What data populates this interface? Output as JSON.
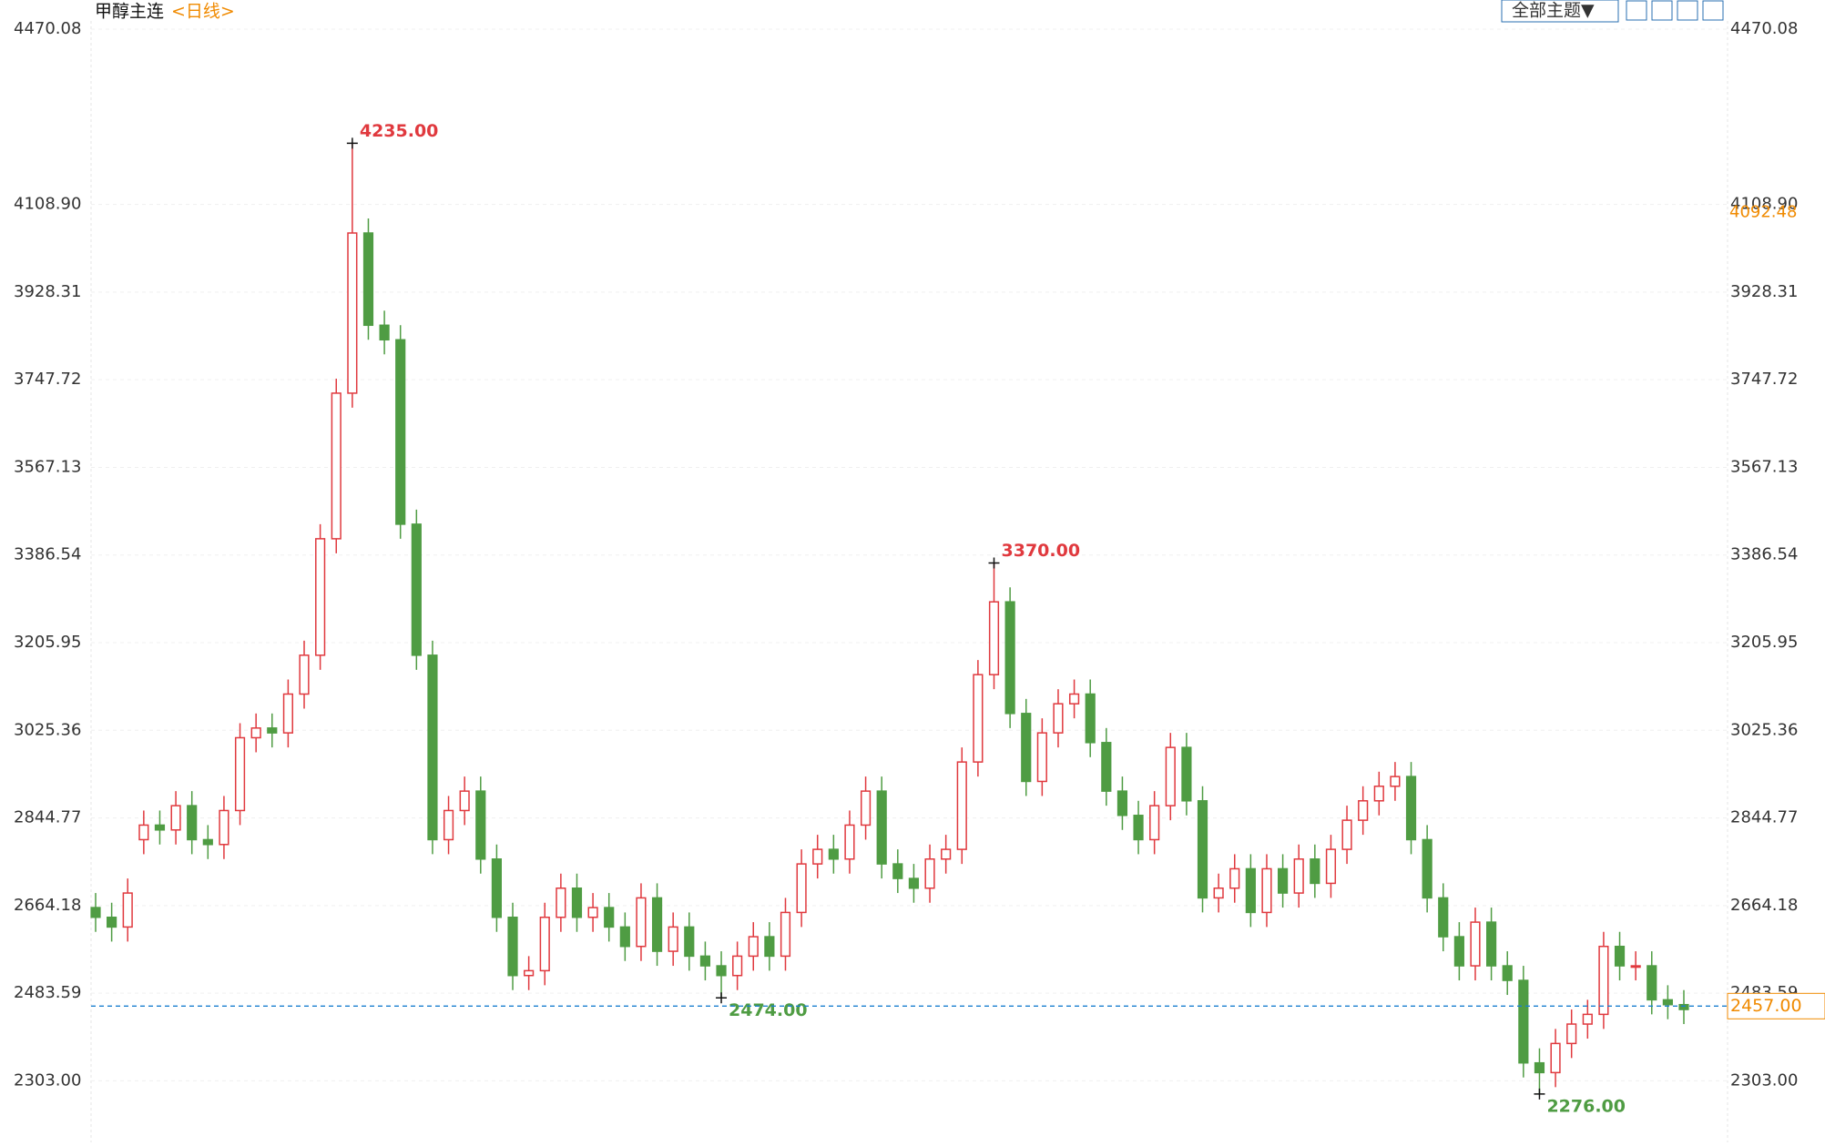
{
  "chart_data": {
    "type": "candlestick",
    "title": "甲醇主连",
    "subtitle": "<日线>",
    "theme_button": "全部主题▼",
    "up_color": "#e0393e",
    "down_color": "#4f9c43",
    "ylim": [
      2180,
      4487
    ],
    "yticks": [
      {
        "value": 2303,
        "label": "2303.00"
      },
      2483.59,
      2664.18,
      2844.77,
      {
        "value": 3025.36,
        "label": "3025.36"
      },
      3205.95,
      3386.54,
      3567.13,
      3747.72,
      3928.31,
      {
        "value": 4108.9,
        "label": "4108.90"
      },
      4470.08
    ],
    "open": [
      2660,
      2640,
      2620,
      2800,
      2830,
      2820,
      2870,
      2800,
      2790,
      2860,
      3010,
      3030,
      3020,
      3100,
      3180,
      3420,
      3720,
      4050,
      3860,
      3830,
      3450,
      3180,
      2800,
      2860,
      2900,
      2760,
      2640,
      2520,
      2530,
      2640,
      2700,
      2640,
      2660,
      2620,
      2580,
      2680,
      2570,
      2620,
      2560,
      2540,
      2520,
      2560,
      2600,
      2560,
      2650,
      2750,
      2780,
      2760,
      2830,
      2900,
      2750,
      2720,
      2700,
      2760,
      2780,
      2960,
      3140,
      3290,
      3060,
      2920,
      3020,
      3080,
      3100,
      3000,
      2900,
      2850,
      2800,
      2870,
      2990,
      2880,
      2680,
      2700,
      2740,
      2650,
      2740,
      2690,
      2760,
      2710,
      2780,
      2840,
      2880,
      2910,
      2930,
      2800,
      2680,
      2600,
      2540,
      2630,
      2540,
      2510,
      2340,
      2320,
      2380,
      2420,
      2440,
      2580,
      2540,
      2540,
      2470,
      2460
    ],
    "high": [
      2690,
      2670,
      2720,
      2860,
      2860,
      2900,
      2900,
      2830,
      2890,
      3040,
      3060,
      3060,
      3130,
      3210,
      3450,
      3750,
      4235,
      4080,
      3890,
      3860,
      3480,
      3210,
      2890,
      2930,
      2930,
      2790,
      2670,
      2560,
      2670,
      2730,
      2730,
      2690,
      2690,
      2650,
      2710,
      2710,
      2650,
      2650,
      2590,
      2570,
      2590,
      2630,
      2630,
      2680,
      2780,
      2810,
      2810,
      2860,
      2930,
      2930,
      2780,
      2750,
      2790,
      2810,
      2990,
      3170,
      3370,
      3320,
      3090,
      3050,
      3110,
      3130,
      3130,
      3030,
      2930,
      2880,
      2900,
      3020,
      3020,
      2910,
      2730,
      2770,
      2770,
      2770,
      2770,
      2790,
      2790,
      2810,
      2870,
      2910,
      2940,
      2960,
      2960,
      2830,
      2710,
      2630,
      2660,
      2660,
      2570,
      2540,
      2370,
      2410,
      2450,
      2470,
      2610,
      2610,
      2570,
      2570,
      2500,
      2490
    ],
    "low": [
      2610,
      2590,
      2590,
      2770,
      2790,
      2790,
      2770,
      2760,
      2760,
      2830,
      2980,
      2990,
      2990,
      3070,
      3150,
      3390,
      3690,
      3830,
      3800,
      3420,
      3150,
      2770,
      2770,
      2830,
      2730,
      2610,
      2490,
      2490,
      2500,
      2610,
      2610,
      2610,
      2590,
      2550,
      2550,
      2540,
      2540,
      2530,
      2510,
      2474,
      2490,
      2530,
      2530,
      2530,
      2620,
      2720,
      2730,
      2730,
      2800,
      2720,
      2690,
      2670,
      2670,
      2730,
      2750,
      2930,
      3110,
      3030,
      2890,
      2890,
      2990,
      3050,
      2970,
      2870,
      2820,
      2770,
      2770,
      2840,
      2850,
      2650,
      2650,
      2670,
      2620,
      2620,
      2660,
      2660,
      2680,
      2680,
      2750,
      2810,
      2850,
      2880,
      2770,
      2650,
      2570,
      2510,
      2510,
      2510,
      2480,
      2310,
      2276,
      2290,
      2350,
      2390,
      2410,
      2510,
      2510,
      2440,
      2430,
      2420
    ],
    "close": [
      2640,
      2620,
      2690,
      2830,
      2820,
      2870,
      2800,
      2790,
      2860,
      3010,
      3030,
      3020,
      3100,
      3180,
      3420,
      3720,
      4050,
      3860,
      3830,
      3450,
      3180,
      2800,
      2860,
      2900,
      2760,
      2640,
      2520,
      2530,
      2640,
      2700,
      2640,
      2660,
      2620,
      2580,
      2680,
      2570,
      2620,
      2560,
      2540,
      2520,
      2560,
      2600,
      2560,
      2650,
      2750,
      2780,
      2760,
      2830,
      2900,
      2750,
      2720,
      2700,
      2760,
      2780,
      2960,
      3140,
      3290,
      3060,
      2920,
      3020,
      3080,
      3100,
      3000,
      2900,
      2850,
      2800,
      2870,
      2990,
      2880,
      2680,
      2700,
      2740,
      2650,
      2740,
      2690,
      2760,
      2710,
      2780,
      2840,
      2880,
      2910,
      2930,
      2800,
      2680,
      2600,
      2540,
      2630,
      2540,
      2510,
      2340,
      2320,
      2380,
      2420,
      2440,
      2580,
      2540,
      2540,
      2470,
      2460,
      2450
    ],
    "annotations": [
      {
        "kind": "high",
        "value": 4235,
        "label": "4235.00",
        "color": "#e0393e"
      },
      {
        "kind": "high",
        "value": 3370,
        "label": "3370.00",
        "color": "#e0393e"
      },
      {
        "kind": "low",
        "value": 2474,
        "label": "2474.00",
        "color": "#4f9c43"
      },
      {
        "kind": "low",
        "value": 2276,
        "label": "2276.00",
        "color": "#4f9c43"
      }
    ],
    "last_price": {
      "value": 2457,
      "label": "2457.00",
      "color": "#1a7fd0"
    },
    "cursor_price": 4092.48
  }
}
